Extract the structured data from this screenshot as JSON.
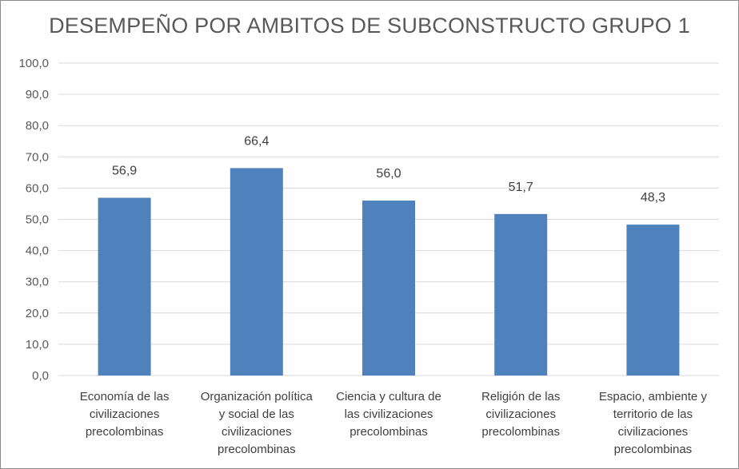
{
  "chart_data": {
    "type": "bar",
    "title": "DESEMPEÑO POR AMBITOS DE SUBCONSTRUCTO GRUPO 1",
    "categories": [
      "Economía de las civilizaciones precolombinas",
      "Organización política y social de las civilizaciones precolombinas",
      "Ciencia y cultura de las civilizaciones precolombinas",
      "Religión de las civilizaciones precolombinas",
      "Espacio, ambiente y territorio de las civilizaciones precolombinas"
    ],
    "category_label_lines": [
      [
        "Economía de las",
        "civilizaciones",
        "precolombinas"
      ],
      [
        "Organización política",
        "y social de las",
        "civilizaciones",
        "precolombinas"
      ],
      [
        "Ciencia y cultura de",
        "las civilizaciones",
        "precolombinas"
      ],
      [
        "Religión de las",
        "civilizaciones",
        "precolombinas"
      ],
      [
        "Espacio, ambiente y",
        "territorio de las",
        "civilizaciones",
        "precolombinas"
      ]
    ],
    "values": [
      56.9,
      66.4,
      56.0,
      51.7,
      48.3
    ],
    "data_labels": [
      "56,9",
      "66,4",
      "56,0",
      "51,7",
      "48,3"
    ],
    "ylim": [
      0,
      100
    ],
    "y_ticks": [
      0,
      10,
      20,
      30,
      40,
      50,
      60,
      70,
      80,
      90,
      100
    ],
    "y_tick_labels": [
      "0,0",
      "10,0",
      "20,0",
      "30,0",
      "40,0",
      "50,0",
      "60,0",
      "70,0",
      "80,0",
      "90,0",
      "100,0"
    ],
    "xlabel": "",
    "ylabel": "",
    "grid": true,
    "legend": "none",
    "bar_color": "#4f81bd",
    "grid_color": "#d9d9d9"
  }
}
